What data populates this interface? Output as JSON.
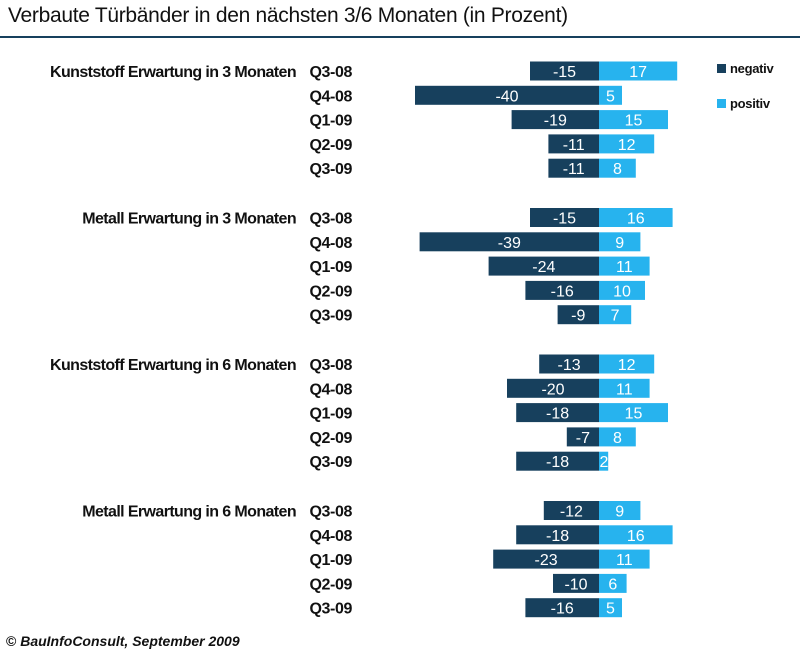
{
  "title": "Verbaute Türbänder in den nächsten 3/6 Monaten (in Prozent)",
  "footer": {
    "copyright_symbol": "©",
    "source": "BauInfoConsult,",
    "date": "September 2009"
  },
  "colors": {
    "negative": "#17405d",
    "positive": "#27b3ee",
    "text": "#111111",
    "rule": "#17405d"
  },
  "chart_data": {
    "type": "bar",
    "orientation": "horizontal-diverging",
    "legend": {
      "position": "top-right",
      "entries": [
        {
          "key": "negative",
          "label": "negativ"
        },
        {
          "key": "positive",
          "label": "positiv"
        }
      ]
    },
    "series": [
      {
        "name": "negativ",
        "key": "negative"
      },
      {
        "name": "positiv",
        "key": "positive"
      }
    ],
    "groups": [
      {
        "label": "Kunststoff Erwartung in 3 Monaten",
        "rows": [
          {
            "period": "Q3-08",
            "negative": -15,
            "positive": 17
          },
          {
            "period": "Q4-08",
            "negative": -40,
            "positive": 5
          },
          {
            "period": "Q1-09",
            "negative": -19,
            "positive": 15
          },
          {
            "period": "Q2-09",
            "negative": -11,
            "positive": 12
          },
          {
            "period": "Q3-09",
            "negative": -11,
            "positive": 8
          }
        ]
      },
      {
        "label": "Metall Erwartung in 3 Monaten",
        "rows": [
          {
            "period": "Q3-08",
            "negative": -15,
            "positive": 16
          },
          {
            "period": "Q4-08",
            "negative": -39,
            "positive": 9
          },
          {
            "period": "Q1-09",
            "negative": -24,
            "positive": 11
          },
          {
            "period": "Q2-09",
            "negative": -16,
            "positive": 10
          },
          {
            "period": "Q3-09",
            "negative": -9,
            "positive": 7
          }
        ]
      },
      {
        "label": "Kunststoff Erwartung in 6 Monaten",
        "rows": [
          {
            "period": "Q3-08",
            "negative": -13,
            "positive": 12
          },
          {
            "period": "Q4-08",
            "negative": -20,
            "positive": 11
          },
          {
            "period": "Q1-09",
            "negative": -18,
            "positive": 15
          },
          {
            "period": "Q2-09",
            "negative": -7,
            "positive": 8
          },
          {
            "period": "Q3-09",
            "negative": -18,
            "positive": 2
          }
        ]
      },
      {
        "label": "Metall Erwartung in 6 Monaten",
        "rows": [
          {
            "period": "Q3-08",
            "negative": -12,
            "positive": 9
          },
          {
            "period": "Q4-08",
            "negative": -18,
            "positive": 16
          },
          {
            "period": "Q1-09",
            "negative": -23,
            "positive": 11
          },
          {
            "period": "Q2-09",
            "negative": -10,
            "positive": 6
          },
          {
            "period": "Q3-09",
            "negative": -16,
            "positive": 5
          }
        ]
      }
    ]
  }
}
